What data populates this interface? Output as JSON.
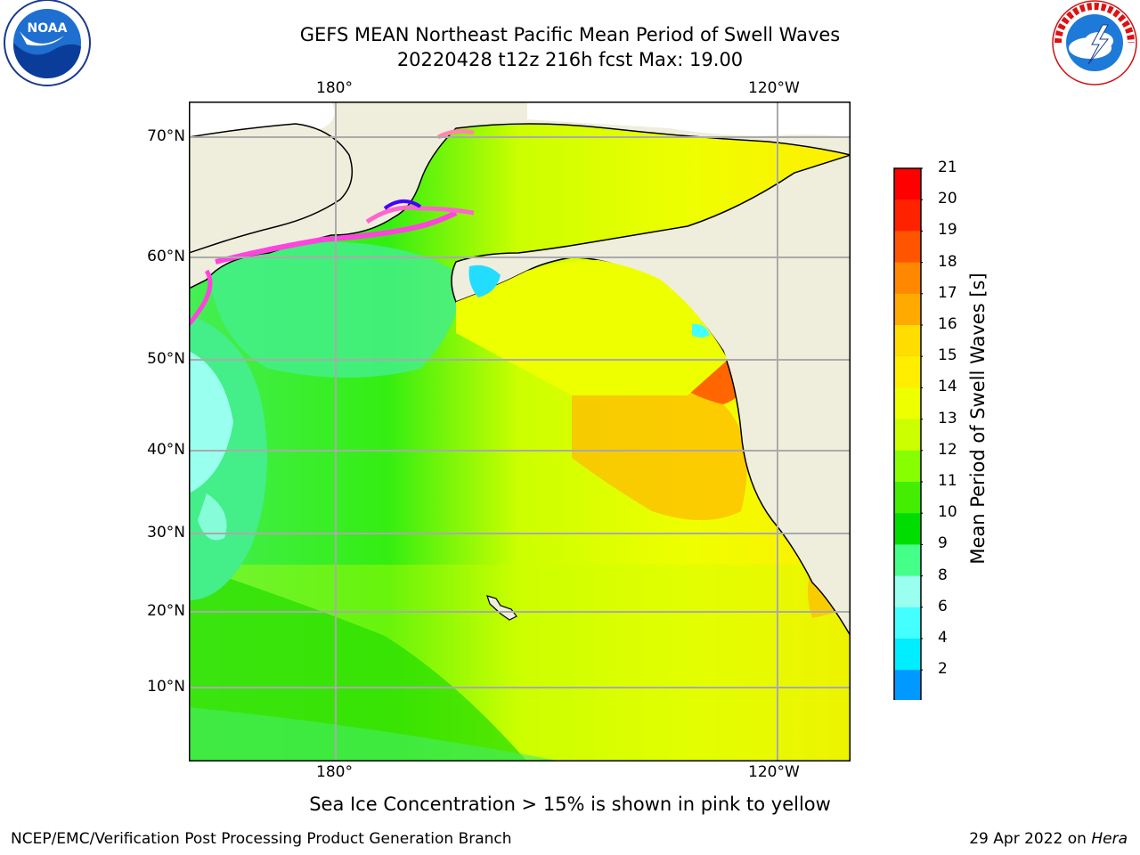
{
  "title_line1": "GEFS MEAN Northeast Pacific Mean Period of Swell Waves",
  "title_line2": "20220428 t12z 216h fcst   Max: 19.00",
  "top_lon_labels": [
    "180°",
    "120°W"
  ],
  "bottom_lon_labels": [
    "180°",
    "120°W"
  ],
  "lat_labels": [
    "70°N",
    "60°N",
    "50°N",
    "40°N",
    "30°N",
    "20°N",
    "10°N"
  ],
  "colorbar": {
    "title": "Mean Period of Swell Waves [s]",
    "ticks": [
      "21",
      "20",
      "19",
      "18",
      "17",
      "16",
      "15",
      "14",
      "13",
      "12",
      "11",
      "10",
      "9",
      "8",
      "6",
      "4",
      "2"
    ],
    "colors": [
      "#ff0000",
      "#ff2200",
      "#ff5500",
      "#ff8800",
      "#ffaa00",
      "#ffdd00",
      "#ffee00",
      "#eeff00",
      "#ccff00",
      "#88ff00",
      "#44ee00",
      "#00dd00",
      "#44ff88",
      "#99ffee",
      "#44ffff",
      "#00eeff",
      "#0099ff",
      "#0055ff"
    ],
    "extend_color": "#0000ff"
  },
  "footnote": "Sea Ice Concentration > 15% is shown in pink to yellow",
  "credit_left": "NCEP/EMC/Verification Post Processing Product Generation Branch",
  "credit_right_prefix": "29 Apr 2022 on ",
  "credit_right_machine": "Hera",
  "logos": {
    "left": {
      "name": "noaa-logo",
      "text": "NOAA"
    },
    "right": {
      "name": "nws-logo",
      "text": "NATIONAL WEATHER SERVICE"
    }
  }
}
